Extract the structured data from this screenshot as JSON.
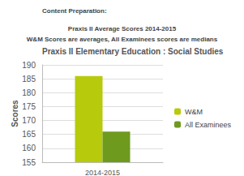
{
  "chart_data": {
    "type": "bar",
    "annotations": [
      "Content Preparation:",
      "Praxis II Average Scores 2014-2015",
      "W&M Scores are averages, All Examinees scores are medians"
    ],
    "title": "Praxis II Elementary Education : Social Studies",
    "y_label": "Scores",
    "categories": [
      "2014-2015"
    ],
    "series": [
      {
        "name": "W&M",
        "color": "#b7ca0b",
        "values": [
          186
        ]
      },
      {
        "name": "All Examinees",
        "color": "#6e9a1e",
        "values": [
          166
        ]
      }
    ],
    "ylim": [
      155,
      190
    ],
    "yticks": [
      155,
      160,
      165,
      170,
      175,
      180,
      185,
      190
    ],
    "grid": true,
    "legend": "right"
  }
}
